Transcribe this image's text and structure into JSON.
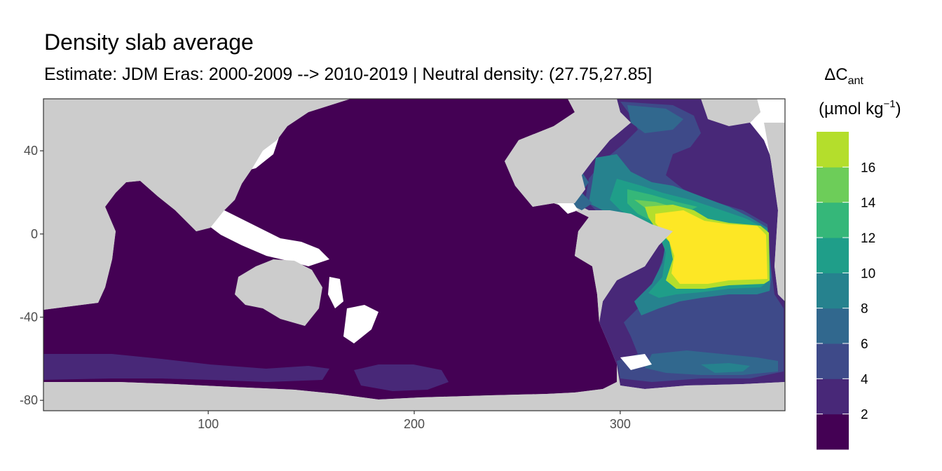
{
  "title": "Density slab average",
  "subtitle": "Estimate: JDM Eras: 2000-2009 --> 2010-2019 | Neutral density: (27.75,27.85]",
  "legend": {
    "title_delta": "ΔC",
    "title_sub": "ant",
    "unit_open": "(µmol kg",
    "unit_sup": "−1",
    "unit_close": ")"
  },
  "chart_data": {
    "type": "heatmap",
    "title": "Density slab average",
    "subtitle": "Estimate: JDM Eras: 2000-2009 --> 2010-2019 | Neutral density: (27.75,27.85]",
    "xlabel": "",
    "ylabel": "",
    "xlim": [
      20,
      380
    ],
    "ylim": [
      -85,
      65
    ],
    "x_ticks": [
      100,
      200,
      300
    ],
    "y_ticks": [
      40,
      0,
      -40,
      -80
    ],
    "grid": false,
    "legend_position": "right",
    "colorbar": {
      "bins": [
        0,
        2,
        4,
        6,
        8,
        10,
        12,
        14,
        16,
        18
      ],
      "tick_labels": [
        2,
        4,
        6,
        8,
        10,
        12,
        14,
        16
      ],
      "colors": [
        "#440154",
        "#482878",
        "#3E4A89",
        "#31688E",
        "#26828E",
        "#1F9E89",
        "#35B779",
        "#6DCD59",
        "#B4DE2C",
        "#FDE725"
      ]
    },
    "colors": {
      "land": "#CCCCCC",
      "missing": "#FFFFFF",
      "low": "#440154",
      "high": "#FDE725"
    }
  }
}
